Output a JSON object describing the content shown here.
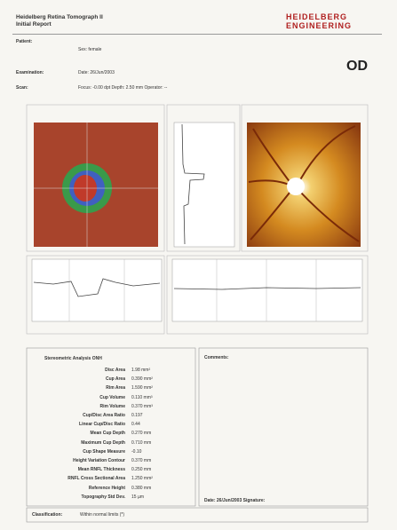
{
  "header": {
    "title": "Heidelberg Retina Tomograph II",
    "subtitle": "Initial Report",
    "logo_line1": "HEIDELBERG",
    "logo_line2": "ENGINEERING"
  },
  "info": [
    {
      "label": "Patient:",
      "lines": [
        "",
        "Sex: female",
        ""
      ]
    },
    {
      "label": "Examination:",
      "lines": [
        "Date: 26/Jun/2003"
      ]
    },
    {
      "label": "Scan:",
      "lines": [
        "Focus: -0.00 dpt   Depth: 2.50 mm   Operator: --"
      ]
    }
  ],
  "eye": "OD",
  "analysis": {
    "title": "Stereometric Analysis ONH",
    "rows": [
      [
        "Disc Area",
        "1.98 mm²"
      ],
      [
        "Cup Area",
        "0.390 mm²"
      ],
      [
        "Rim Area",
        "1.590 mm²"
      ],
      [
        "Cup Volume",
        "0.110 mm³"
      ],
      [
        "Rim Volume",
        "0.370 mm³"
      ],
      [
        "Cup/Disc Area Ratio",
        "0.197"
      ],
      [
        "Linear Cup/Disc Ratio",
        "0.44"
      ],
      [
        "Mean Cup Depth",
        "0.270 mm"
      ],
      [
        "Maximum Cup Depth",
        "0.710 mm"
      ],
      [
        "Cup Shape Measure",
        "-0.10"
      ],
      [
        "Height Variation Contour",
        "0.370 mm"
      ],
      [
        "Mean RNFL Thickness",
        "0.250 mm"
      ],
      [
        "RNFL Cross Sectional Area",
        "1.250 mm²"
      ],
      [
        "Reference Height",
        "0.380 mm"
      ],
      [
        "Topography Std Dev.",
        "15 µm"
      ]
    ]
  },
  "comments": {
    "title": "Comments:",
    "signature": "Date: 26/Jun/2003   Signature:"
  },
  "classification": {
    "label": "Classification:",
    "value": "Within normal limits (*)"
  }
}
